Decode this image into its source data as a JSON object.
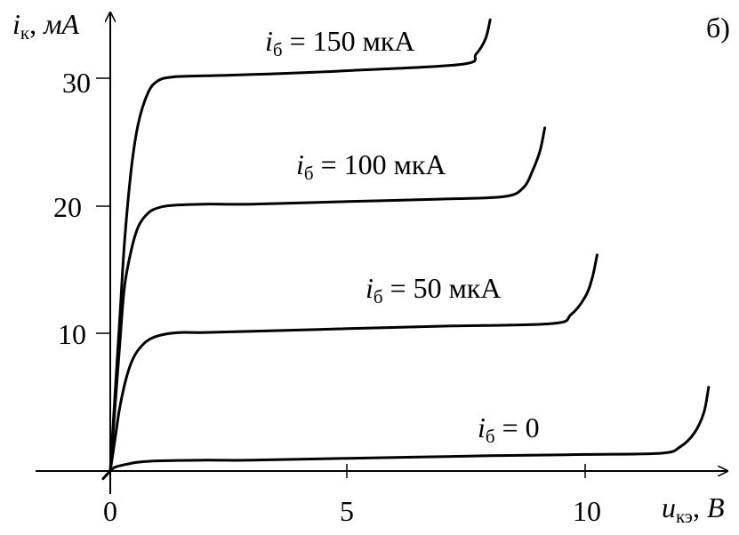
{
  "chart_data": {
    "type": "line",
    "panel_label": "б)",
    "x_axis": {
      "symbol": "u",
      "subscript": "кэ",
      "unit": "B",
      "ticks": [
        0,
        5,
        10
      ],
      "tick_labels": [
        "0",
        "5",
        "10"
      ],
      "range": [
        0,
        13
      ]
    },
    "y_axis": {
      "symbol": "i",
      "subscript": "к",
      "unit": "мА",
      "ticks": [
        10,
        20,
        30
      ],
      "tick_labels": [
        "10",
        "20",
        "30"
      ],
      "range": [
        0,
        35
      ]
    },
    "grid": false,
    "series": [
      {
        "label_symbol": "i",
        "label_subscript": "б",
        "label_rest": " = 0",
        "x": [
          -0.15,
          0,
          0.1,
          0.3,
          0.6,
          1,
          2,
          3,
          5,
          8,
          10,
          11.6,
          12,
          12.3,
          12.5,
          12.6
        ],
        "y": [
          -0.6,
          0,
          0.3,
          0.5,
          0.7,
          0.8,
          0.85,
          0.85,
          1.0,
          1.2,
          1.3,
          1.4,
          1.9,
          3.0,
          4.6,
          6.6
        ]
      },
      {
        "label_symbol": "i",
        "label_subscript": "б",
        "label_rest": " = 50 мкА",
        "x": [
          0,
          0.1,
          0.2,
          0.35,
          0.5,
          0.7,
          0.9,
          1.2,
          1.5,
          2,
          3,
          5,
          7,
          9.3,
          9.7,
          10,
          10.15,
          10.25
        ],
        "y": [
          0,
          2.5,
          5.0,
          7.5,
          9.0,
          10.0,
          10.5,
          10.8,
          10.9,
          10.9,
          11.0,
          11.2,
          11.4,
          11.6,
          12.3,
          13.7,
          15.2,
          17.0
        ]
      },
      {
        "label_symbol": "i",
        "label_subscript": "б",
        "label_rest": " = 100 мкА",
        "x": [
          0,
          0.1,
          0.2,
          0.3,
          0.45,
          0.6,
          0.8,
          1.0,
          1.3,
          2,
          3,
          5,
          7,
          8.3,
          8.7,
          8.9,
          9.05,
          9.15
        ],
        "y": [
          0,
          5.0,
          10.0,
          14.5,
          17.5,
          19.3,
          20.3,
          20.7,
          20.9,
          21.0,
          21.0,
          21.2,
          21.4,
          21.6,
          22.3,
          23.7,
          25.2,
          27.0
        ]
      },
      {
        "label_symbol": "i",
        "label_subscript": "б",
        "label_rest": " = 150 мкА",
        "x": [
          0,
          0.1,
          0.2,
          0.3,
          0.45,
          0.6,
          0.8,
          1.0,
          1.3,
          2,
          3,
          5,
          7.4,
          7.7,
          7.9,
          8.0
        ],
        "y": [
          0,
          6.0,
          12.0,
          18.0,
          24.0,
          27.5,
          29.8,
          30.7,
          31.0,
          31.1,
          31.2,
          31.5,
          32.0,
          32.8,
          34.0,
          35.5
        ]
      }
    ]
  }
}
